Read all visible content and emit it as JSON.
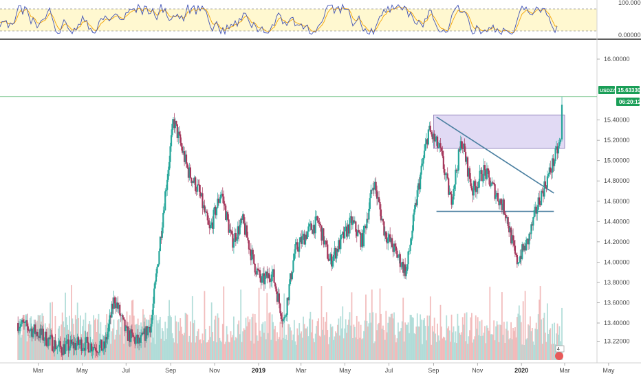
{
  "chart_data": {
    "type": "candlestick",
    "symbol": "USDZAR",
    "last_price": "15.63330",
    "countdown": "06:20:12",
    "price_axis": {
      "ylim": [
        13.12,
        16.2
      ],
      "ticks": [
        "16.00000",
        "15.40000",
        "15.20000",
        "15.00000",
        "14.80000",
        "14.60000",
        "14.40000",
        "14.20000",
        "14.00000",
        "13.80000",
        "13.60000",
        "13.40000",
        "13.22000"
      ],
      "tick_values": [
        16.0,
        15.4,
        15.2,
        15.0,
        14.8,
        14.6,
        14.4,
        14.2,
        14.0,
        13.8,
        13.6,
        13.4,
        13.22
      ]
    },
    "oscillator": {
      "ticks": [
        "100.00000",
        "0.00000"
      ],
      "tick_values": [
        100,
        0
      ],
      "band": [
        20,
        80
      ],
      "k_color": "#3f51b5",
      "d_color": "#f4a300",
      "band_color": "#fff8d0"
    },
    "time_axis": {
      "labels": [
        "Mar",
        "May",
        "Jul",
        "Sep",
        "Nov",
        "2019",
        "Mar",
        "May",
        "Jul",
        "Sep",
        "Nov",
        "2020",
        "Mar",
        "May"
      ],
      "dates": [
        "2018-03-01",
        "2018-05-01",
        "2018-07-01",
        "2018-09-01",
        "2018-11-01",
        "2019-01-01",
        "2019-03-01",
        "2019-05-01",
        "2019-07-01",
        "2019-09-01",
        "2019-11-01",
        "2020-01-01",
        "2020-03-01",
        "2020-05-01"
      ],
      "bold": [
        "2019",
        "2020"
      ]
    },
    "price_path": [
      [
        "2018-02-01",
        13.4
      ],
      [
        "2018-03-01",
        13.3
      ],
      [
        "2018-04-01",
        13.15
      ],
      [
        "2018-05-01",
        13.2
      ],
      [
        "2018-06-01",
        13.15
      ],
      [
        "2018-06-15",
        13.65
      ],
      [
        "2018-07-01",
        13.3
      ],
      [
        "2018-07-20",
        13.2
      ],
      [
        "2018-08-05",
        13.4
      ],
      [
        "2018-08-20",
        14.4
      ],
      [
        "2018-09-05",
        15.4
      ],
      [
        "2018-09-25",
        14.9
      ],
      [
        "2018-10-10",
        14.7
      ],
      [
        "2018-10-25",
        14.3
      ],
      [
        "2018-11-10",
        14.7
      ],
      [
        "2018-11-25",
        14.2
      ],
      [
        "2018-12-10",
        14.4
      ],
      [
        "2018-12-25",
        14.0
      ],
      [
        "2019-01-05",
        13.8
      ],
      [
        "2019-01-20",
        13.9
      ],
      [
        "2019-02-05",
        13.4
      ],
      [
        "2019-02-20",
        14.1
      ],
      [
        "2019-03-10",
        14.3
      ],
      [
        "2019-03-25",
        14.4
      ],
      [
        "2019-04-10",
        14.0
      ],
      [
        "2019-04-25",
        14.2
      ],
      [
        "2019-05-10",
        14.4
      ],
      [
        "2019-05-25",
        14.2
      ],
      [
        "2019-06-10",
        14.8
      ],
      [
        "2019-06-25",
        14.3
      ],
      [
        "2019-07-10",
        14.1
      ],
      [
        "2019-07-25",
        13.9
      ],
      [
        "2019-08-10",
        14.7
      ],
      [
        "2019-08-25",
        15.3
      ],
      [
        "2019-09-10",
        15.1
      ],
      [
        "2019-09-25",
        14.6
      ],
      [
        "2019-10-10",
        15.2
      ],
      [
        "2019-10-25",
        14.7
      ],
      [
        "2019-11-10",
        14.9
      ],
      [
        "2019-11-25",
        14.7
      ],
      [
        "2019-12-10",
        14.5
      ],
      [
        "2019-12-25",
        14.0
      ],
      [
        "2020-01-10",
        14.2
      ],
      [
        "2020-01-25",
        14.6
      ],
      [
        "2020-02-10",
        14.9
      ],
      [
        "2020-02-25",
        15.2
      ]
    ],
    "drawings": {
      "rectangle": {
        "start": "2019-09-01",
        "end": "2020-03-01",
        "top": 15.45,
        "bottom": 15.12
      },
      "support_line": {
        "start": "2019-09-05",
        "end": "2020-02-15",
        "y": 14.5
      },
      "trend_line": {
        "start": "2019-09-05",
        "y_start": 15.43,
        "end": "2020-02-15",
        "y_end": 14.68
      },
      "horizontal_line": {
        "y": 15.63
      }
    },
    "colors": {
      "up": "#26a69a",
      "down": "#a5375b",
      "trend": "#4a7fa0",
      "rect_fill": "#d7cef0",
      "rect_stroke": "#8879b5",
      "price_tag": "#1a9e57"
    }
  }
}
